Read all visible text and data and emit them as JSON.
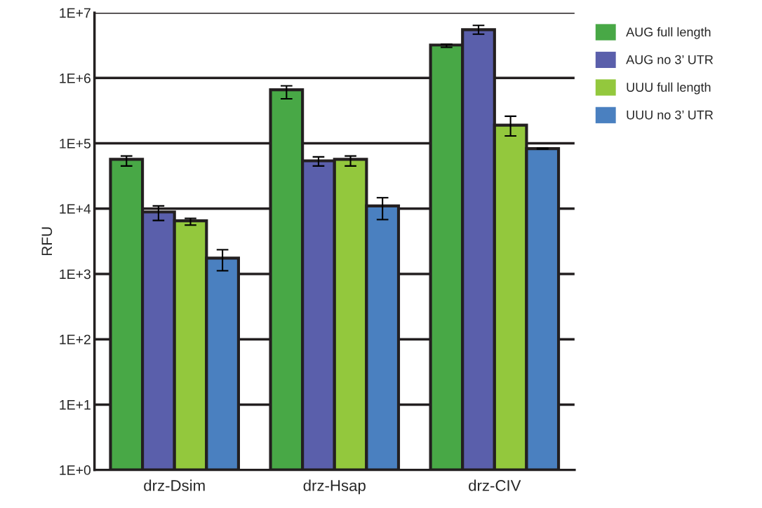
{
  "chart_data": {
    "type": "bar",
    "ylabel": "RFU",
    "categories": [
      "drz-Dsim",
      "drz-Hsap",
      "drz-CIV"
    ],
    "series": [
      {
        "name": "AUG full length",
        "color": "#48a846",
        "values": [
          57000,
          660000,
          3200000
        ],
        "errors": [
          [
            45000,
            64000
          ],
          [
            480000,
            760000
          ],
          [
            2950000,
            3300000
          ]
        ]
      },
      {
        "name": "AUG no 3’ UTR",
        "color": "#5a5fab",
        "values": [
          8900,
          54000,
          5500000
        ],
        "errors": [
          [
            6600,
            11000
          ],
          [
            45000,
            62000
          ],
          [
            4700000,
            6400000
          ]
        ]
      },
      {
        "name": "UUU full length",
        "color": "#93c83d",
        "values": [
          6500,
          57000,
          190000
        ],
        "errors": [
          [
            5600,
            7100
          ],
          [
            45000,
            64000
          ],
          [
            130000,
            260000
          ]
        ]
      },
      {
        "name": "UUU no 3’ UTR",
        "color": "#4a80c0",
        "values": [
          1750,
          11000,
          83000
        ],
        "errors": [
          [
            1120,
            2350
          ],
          [
            6800,
            14700
          ],
          [
            82000,
            84000
          ]
        ]
      }
    ],
    "log": "y",
    "ylim": [
      1,
      10000000
    ],
    "yticks": [
      {
        "value": 1,
        "label": "1E+0"
      },
      {
        "value": 10,
        "label": "1E+1"
      },
      {
        "value": 100,
        "label": "1E+2"
      },
      {
        "value": 1000,
        "label": "1E+3"
      },
      {
        "value": 10000,
        "label": "1E+4"
      },
      {
        "value": 100000,
        "label": "1E+5"
      },
      {
        "value": 1000000,
        "label": "1E+6"
      },
      {
        "value": 10000000,
        "label": "1E+7"
      }
    ],
    "grid": "y",
    "legend": "top right"
  }
}
